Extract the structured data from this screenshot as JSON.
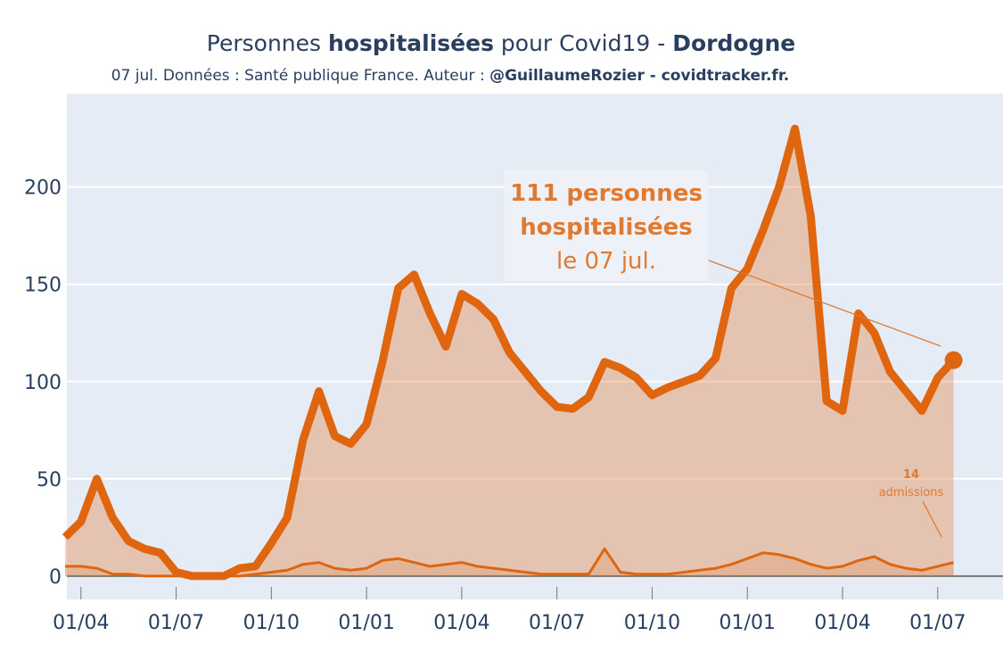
{
  "chart_data": {
    "type": "line",
    "title": [
      "Personnes ",
      "hospitalisées",
      " pour Covid19 - ",
      "Dordogne"
    ],
    "subtitle": [
      "07 jul. Données : Santé publique France. Auteur : ",
      "@GuillaumeRozier - covidtracker.fr."
    ],
    "categories": [
      null,
      "01/04",
      null,
      null,
      null,
      null,
      null,
      "01/07",
      null,
      null,
      null,
      null,
      null,
      "01/10",
      null,
      null,
      null,
      null,
      null,
      "01/01",
      null,
      null,
      null,
      null,
      null,
      "01/04",
      null,
      null,
      null,
      null,
      null,
      "01/07",
      null,
      null,
      null,
      null,
      null,
      "01/10",
      null,
      null,
      null,
      null,
      null,
      "01/01",
      null,
      null,
      null,
      null,
      null,
      "01/04",
      null,
      null,
      null,
      null,
      null,
      "01/07",
      null
    ],
    "series": [
      {
        "name": "personnes hospitalisées",
        "color": "#e0650f",
        "values": [
          20,
          28,
          50,
          30,
          18,
          14,
          12,
          2,
          0,
          0,
          0,
          4,
          5,
          17,
          30,
          70,
          95,
          72,
          68,
          78,
          110,
          148,
          155,
          135,
          118,
          145,
          140,
          132,
          115,
          105,
          95,
          87,
          86,
          92,
          110,
          107,
          102,
          93,
          97,
          100,
          103,
          112,
          148,
          158,
          178,
          200,
          230,
          185,
          90,
          85,
          135,
          125,
          105,
          95,
          85,
          102,
          111
        ]
      },
      {
        "name": "admissions",
        "color": "#e0650f",
        "values": [
          5,
          5,
          4,
          1,
          1,
          0,
          0,
          0,
          0,
          0,
          0,
          0,
          1,
          2,
          3,
          6,
          7,
          4,
          3,
          4,
          8,
          9,
          7,
          5,
          6,
          7,
          5,
          4,
          3,
          2,
          1,
          1,
          1,
          1,
          14,
          2,
          1,
          1,
          1,
          2,
          3,
          4,
          6,
          9,
          12,
          11,
          9,
          6,
          4,
          5,
          8,
          10,
          6,
          4,
          3,
          5,
          7
        ]
      }
    ],
    "annotations": [
      {
        "lines": [
          "111 personnes",
          "hospitalisées",
          "le 07 jul."
        ]
      },
      {
        "lines": [
          "14",
          "admissions"
        ]
      }
    ],
    "ylim": [
      -12,
      248
    ],
    "yticks": [
      0,
      50,
      100,
      150,
      200
    ],
    "grid": true
  }
}
